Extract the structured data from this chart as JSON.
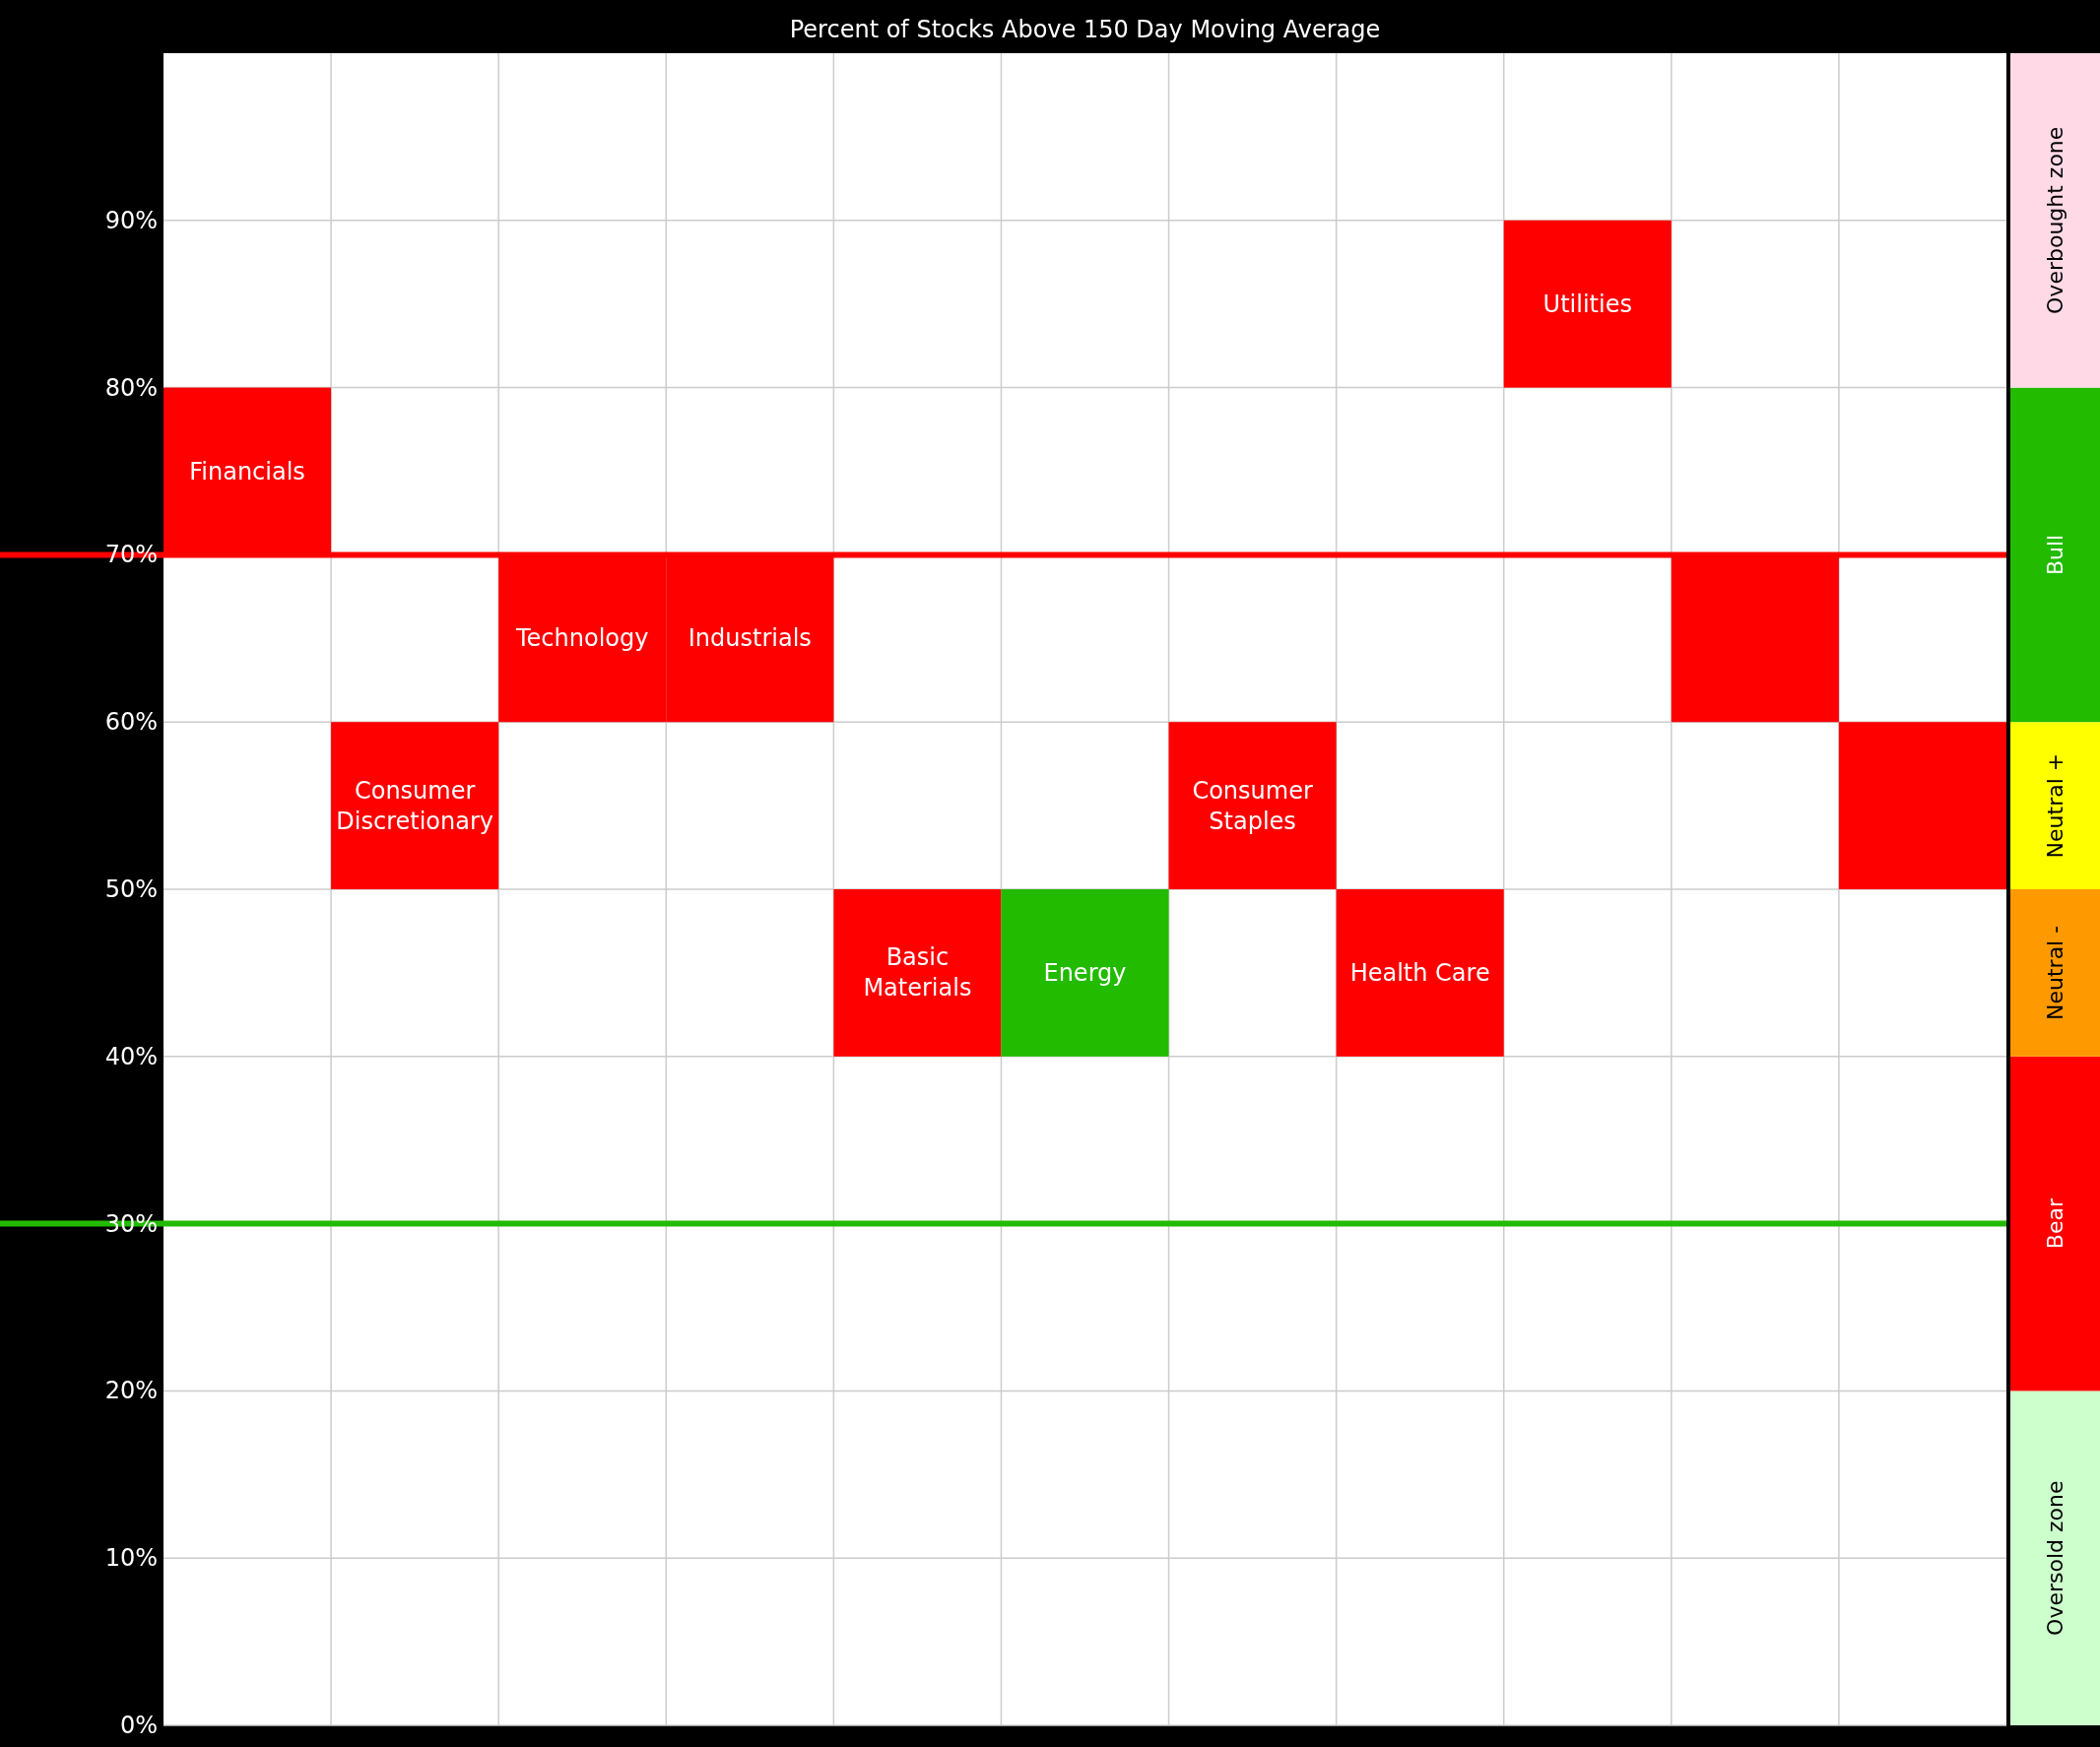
{
  "chart_data": [
    {
      "type": "bar",
      "title": "Percent of Stocks Above 150 Day Moving Average",
      "categories": [
        "Financials",
        "Consumer Discretionary",
        "Technology",
        "Industrials",
        "Basic Materials",
        "Energy",
        "Consumer Staples",
        "Health Care",
        "Utilities",
        null,
        null
      ],
      "base": [
        70,
        50,
        60,
        60,
        40,
        40,
        50,
        40,
        80,
        60,
        50
      ],
      "values": [
        10,
        10,
        10,
        10,
        10,
        10,
        10,
        10,
        10,
        10,
        10
      ],
      "colors": [
        "#ff0000",
        "#ff0000",
        "#ff0000",
        "#ff0000",
        "#ff0000",
        "#22bb00",
        "#ff0000",
        "#ff0000",
        "#ff0000",
        "#ff0000",
        "#ff0000"
      ],
      "ylim": [
        0,
        100
      ],
      "yticks": [
        {
          "value": 0,
          "label": "0%"
        },
        {
          "value": 10,
          "label": "10%"
        },
        {
          "value": 20,
          "label": "20%"
        },
        {
          "value": 30,
          "label": "30%"
        },
        {
          "value": 40,
          "label": "40%"
        },
        {
          "value": 50,
          "label": "50%"
        },
        {
          "value": 60,
          "label": "60%"
        },
        {
          "value": 70,
          "label": "70%"
        },
        {
          "value": 80,
          "label": "80%"
        },
        {
          "value": 90,
          "label": "90%"
        }
      ],
      "grid": true,
      "ref_lines": [
        {
          "axis": "y",
          "value": 70,
          "color": "#ff0000"
        },
        {
          "axis": "y",
          "value": 30,
          "color": "#22bb00"
        }
      ]
    },
    {
      "type": "bar",
      "stacked": true,
      "categories": [
        null
      ],
      "ylim": [
        0,
        100
      ],
      "series": [
        {
          "name": "Oversold zone",
          "color": "#ccffcc",
          "values": [
            20
          ]
        },
        {
          "name": "Bear",
          "color": "#ff0000",
          "values": [
            20
          ]
        },
        {
          "name": "Neutral -",
          "color": "#ff9900",
          "values": [
            10
          ]
        },
        {
          "name": "Neutral +",
          "color": "#ffff00",
          "values": [
            10
          ]
        },
        {
          "name": "Bull",
          "color": "#22bb00",
          "values": [
            20
          ]
        },
        {
          "name": "Overbought zone",
          "color": "#ffd9e6",
          "values": [
            20
          ]
        }
      ]
    }
  ]
}
